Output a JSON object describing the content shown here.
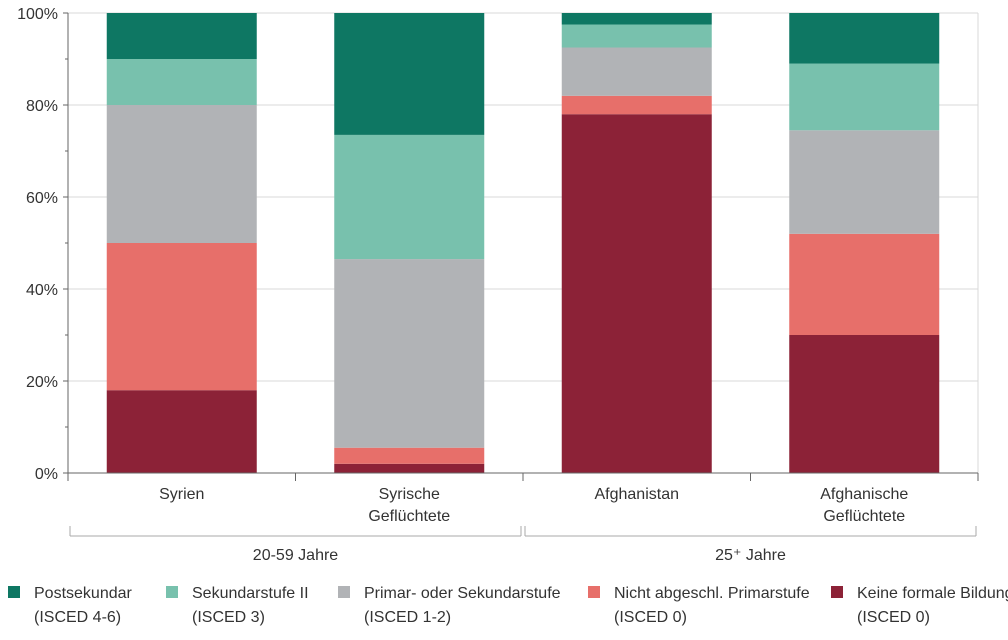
{
  "chart_data": {
    "type": "bar",
    "stacked": true,
    "normalized": true,
    "categories": [
      [
        "Syrien"
      ],
      [
        "Syrische",
        "Geflüchtete"
      ],
      [
        "Afghanistan"
      ],
      [
        "Afghanische",
        "Geflüchtete"
      ]
    ],
    "groups": [
      {
        "label": "20-59 Jahre",
        "categories": [
          0,
          1
        ]
      },
      {
        "label": "25⁺ Jahre",
        "categories": [
          2,
          3
        ]
      }
    ],
    "ylim": [
      0,
      100
    ],
    "yticks": [
      "0%",
      "20%",
      "40%",
      "60%",
      "80%",
      "100%"
    ],
    "series": [
      {
        "name": [
          "Keine formale Bildung",
          "(ISCED 0)"
        ],
        "color": "#8c2237",
        "values": [
          18,
          2,
          78,
          30
        ]
      },
      {
        "name": [
          "Nicht abgeschl. Primarstufe",
          "(ISCED 0)"
        ],
        "color": "#e76f6a",
        "values": [
          32,
          3.5,
          4,
          22
        ]
      },
      {
        "name": [
          "Primar- oder Sekundarstufe",
          "(ISCED 1-2)"
        ],
        "color": "#b1b3b6",
        "values": [
          30,
          41,
          10.5,
          22.5
        ]
      },
      {
        "name": [
          "Sekundarstufe II",
          "(ISCED 3)"
        ],
        "color": "#78c1ad",
        "values": [
          10,
          27,
          5,
          14.5
        ]
      },
      {
        "name": [
          "Postsekundar",
          "(ISCED 4-6)"
        ],
        "color": "#0e7763",
        "values": [
          10,
          26.5,
          2.5,
          11
        ]
      }
    ],
    "legend_order": [
      4,
      3,
      2,
      1,
      0
    ],
    "legend_position": "bottom",
    "grid": true
  }
}
